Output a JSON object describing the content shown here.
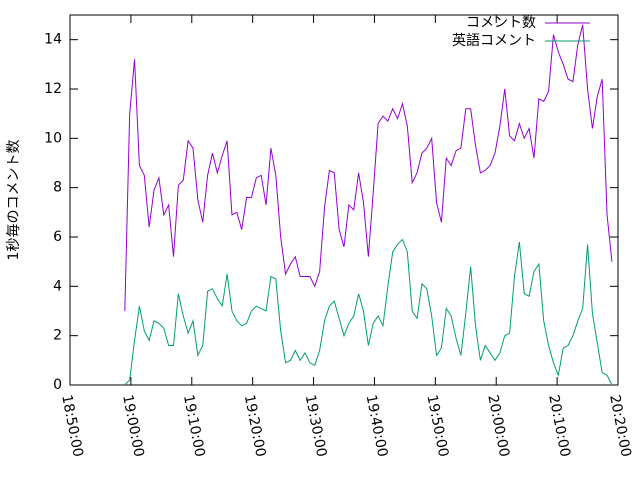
{
  "chart_data": {
    "type": "line",
    "ylabel": "1秒毎のコメント数",
    "x": [
      "18:59:00",
      "18:59:48",
      "19:00:36",
      "19:01:24",
      "19:02:12",
      "19:03:00",
      "19:03:48",
      "19:04:36",
      "19:05:24",
      "19:06:12",
      "19:07:00",
      "19:07:48",
      "19:08:36",
      "19:09:24",
      "19:10:12",
      "19:11:00",
      "19:11:48",
      "19:12:36",
      "19:13:24",
      "19:14:12",
      "19:15:00",
      "19:15:48",
      "19:16:36",
      "19:17:24",
      "19:18:12",
      "19:19:00",
      "19:19:48",
      "19:20:36",
      "19:21:24",
      "19:22:12",
      "19:23:00",
      "19:23:48",
      "19:24:36",
      "19:25:24",
      "19:26:12",
      "19:27:00",
      "19:27:48",
      "19:28:36",
      "19:29:24",
      "19:30:12",
      "19:31:00",
      "19:31:48",
      "19:32:36",
      "19:33:24",
      "19:34:12",
      "19:35:00",
      "19:35:48",
      "19:36:36",
      "19:37:24",
      "19:38:12",
      "19:39:00",
      "19:39:48",
      "19:40:36",
      "19:41:24",
      "19:42:12",
      "19:43:00",
      "19:43:48",
      "19:44:36",
      "19:45:24",
      "19:46:12",
      "19:47:00",
      "19:47:48",
      "19:48:36",
      "19:49:24",
      "19:50:12",
      "19:51:00",
      "19:51:48",
      "19:52:36",
      "19:53:24",
      "19:54:12",
      "19:55:00",
      "19:55:48",
      "19:56:36",
      "19:57:24",
      "19:58:12",
      "19:59:00",
      "19:59:48",
      "20:00:36",
      "20:01:24",
      "20:02:12",
      "20:03:00",
      "20:03:48",
      "20:04:36",
      "20:05:24",
      "20:06:12",
      "20:07:00",
      "20:07:48",
      "20:08:36",
      "20:09:24",
      "20:10:12",
      "20:11:00",
      "20:11:48",
      "20:12:36",
      "20:13:24",
      "20:14:12",
      "20:15:00",
      "20:15:48",
      "20:16:36",
      "20:17:24",
      "20:18:12",
      "20:19:00"
    ],
    "series": [
      {
        "name": "コメント数",
        "color": "#9400d3",
        "values": [
          3.0,
          11.0,
          13.2,
          8.9,
          8.5,
          6.4,
          7.9,
          8.4,
          6.9,
          7.3,
          5.2,
          8.1,
          8.3,
          9.9,
          9.6,
          7.5,
          6.6,
          8.5,
          9.4,
          8.6,
          9.3,
          9.9,
          6.9,
          7.0,
          6.3,
          7.6,
          7.6,
          8.4,
          8.5,
          7.3,
          9.6,
          8.5,
          6.0,
          4.5,
          4.9,
          5.2,
          4.4,
          4.4,
          4.4,
          4.0,
          4.6,
          7.2,
          8.7,
          8.6,
          6.3,
          5.6,
          7.3,
          7.1,
          8.6,
          7.4,
          5.2,
          7.8,
          10.6,
          10.9,
          10.7,
          11.2,
          10.8,
          11.4,
          10.5,
          8.2,
          8.6,
          9.4,
          9.6,
          10.0,
          7.4,
          6.6,
          9.2,
          8.9,
          9.5,
          9.6,
          11.2,
          11.2,
          9.7,
          8.6,
          8.7,
          8.9,
          9.4,
          10.5,
          12.0,
          10.1,
          9.9,
          10.6,
          10.0,
          10.4,
          9.2,
          11.6,
          11.5,
          11.9,
          14.2,
          13.5,
          13.0,
          12.4,
          12.3,
          13.8,
          14.6,
          12.0,
          10.4,
          11.7,
          12.4,
          6.9,
          5.0
        ]
      },
      {
        "name": "英語コメント",
        "color": "#009e73",
        "values": [
          0.0,
          0.2,
          1.8,
          3.2,
          2.2,
          1.8,
          2.6,
          2.5,
          2.3,
          1.6,
          1.6,
          3.7,
          2.8,
          2.1,
          2.6,
          1.2,
          1.6,
          3.8,
          3.9,
          3.5,
          3.2,
          4.5,
          3.0,
          2.6,
          2.4,
          2.5,
          3.0,
          3.2,
          3.1,
          3.0,
          4.4,
          4.3,
          2.2,
          0.9,
          1.0,
          1.4,
          1.0,
          1.3,
          0.9,
          0.8,
          1.4,
          2.6,
          3.2,
          3.4,
          2.7,
          2.0,
          2.5,
          2.8,
          3.7,
          3.0,
          1.6,
          2.5,
          2.8,
          2.4,
          4.0,
          5.4,
          5.7,
          5.9,
          5.4,
          3.0,
          2.7,
          4.1,
          3.9,
          2.8,
          1.2,
          1.5,
          3.1,
          2.8,
          1.9,
          1.2,
          2.9,
          4.8,
          2.4,
          1.0,
          1.6,
          1.3,
          1.0,
          1.3,
          2.0,
          2.1,
          4.4,
          5.8,
          3.7,
          3.6,
          4.6,
          4.9,
          2.6,
          1.6,
          0.9,
          0.4,
          1.5,
          1.6,
          2.0,
          2.6,
          3.1,
          5.7,
          2.9,
          1.7,
          0.5,
          0.4,
          0.0
        ]
      }
    ],
    "xlim": [
      "18:50:00",
      "20:20:00"
    ],
    "xticks": [
      "18:50:00",
      "19:00:00",
      "19:10:00",
      "19:20:00",
      "19:30:00",
      "19:40:00",
      "19:50:00",
      "20:00:00",
      "20:10:00",
      "20:20:00"
    ],
    "ylim": [
      0,
      15
    ],
    "yticks": [
      0,
      2,
      4,
      6,
      8,
      10,
      12,
      14
    ],
    "legend": "top-right"
  }
}
